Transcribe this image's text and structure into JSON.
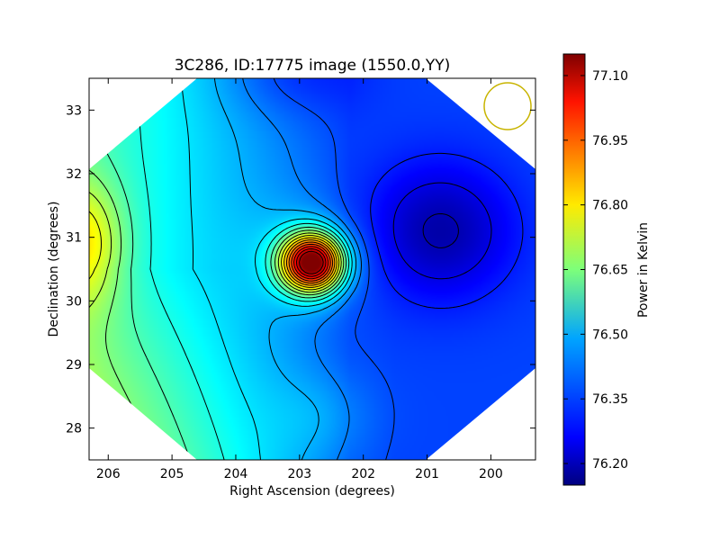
{
  "chart_data": {
    "type": "heatmap",
    "title": "3C286, ID:17775 image (1550.0,YY)",
    "xlabel": "Right Ascension (degrees)",
    "ylabel": "Declination (degrees)",
    "xlim": [
      206.3,
      199.3
    ],
    "ylim": [
      27.5,
      33.5
    ],
    "x_ticks": [
      206,
      205,
      204,
      203,
      202,
      201,
      200
    ],
    "y_ticks": [
      28,
      29,
      30,
      31,
      32,
      33
    ],
    "colorbar": {
      "label": "Power in Kelvin",
      "range": [
        76.15,
        77.15
      ],
      "ticks": [
        "76.20",
        "76.35",
        "76.50",
        "76.65",
        "76.80",
        "76.95",
        "77.10"
      ],
      "colormap": "jet"
    },
    "features": [
      {
        "kind": "peak",
        "ra": 202.8,
        "dec": 30.6,
        "value": 77.1
      },
      {
        "kind": "minimum",
        "ra": 200.8,
        "dec": 31.2,
        "value": 76.17
      },
      {
        "kind": "edge-high",
        "ra": 206.3,
        "dec": 30.9,
        "value": 76.75
      }
    ],
    "beam_marker": {
      "shape": "circle",
      "color": "#c8b400"
    },
    "grid": false
  }
}
